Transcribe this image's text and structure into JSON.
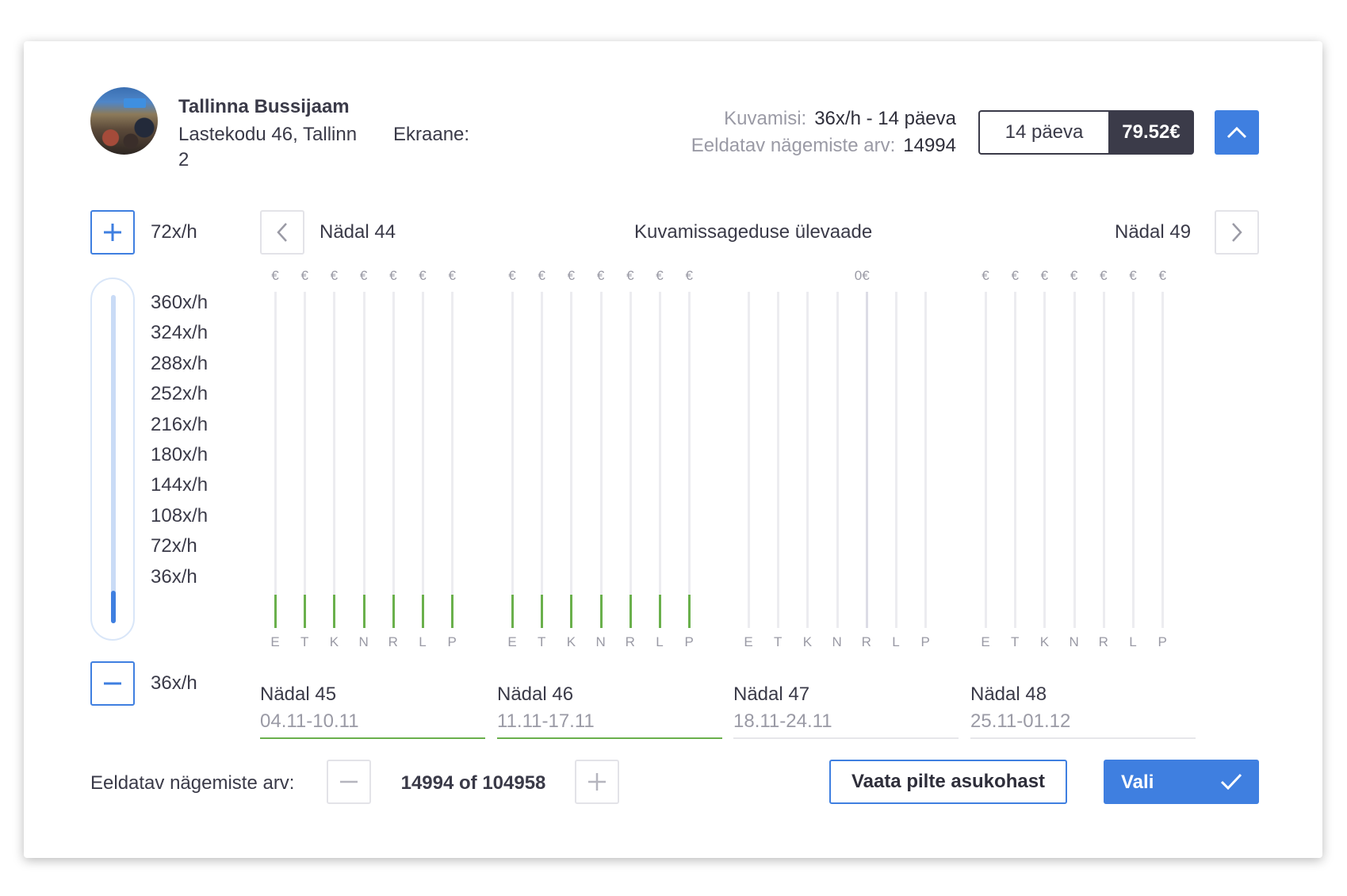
{
  "location": {
    "name": "Tallinna Bussijaam",
    "address": "Lastekodu 46, Tallinn",
    "screens_label": "Ekraane:",
    "screens_value": "2",
    "photo_icon": "location-photo"
  },
  "summary": {
    "display_label": "Kuvamisi:",
    "display_value": "36x/h - 14 päeva",
    "views_label": "Eeldatav nägemiste arv:",
    "views_value": "14994",
    "days": "14 päeva",
    "price": "79.52€"
  },
  "frequency": {
    "top_value": "72x/h",
    "bottom_value": "36x/h",
    "scale": [
      "360x/h",
      "324x/h",
      "288x/h",
      "252x/h",
      "216x/h",
      "180x/h",
      "144x/h",
      "108x/h",
      "72x/h",
      "36x/h"
    ],
    "current_level_fraction": 0.1
  },
  "chart_nav": {
    "start_week": "Nädal 44",
    "title": "Kuvamissageduse ülevaade",
    "end_week": "Nädal 49"
  },
  "chart_data": {
    "type": "bar",
    "unit": "x/h",
    "max": 360,
    "day_labels": [
      "E",
      "T",
      "K",
      "N",
      "R",
      "L",
      "P"
    ],
    "weeks": [
      {
        "name": "Nädal 45",
        "range": "04.11-10.11",
        "selected": true,
        "price_labels": [
          "€",
          "€",
          "€",
          "€",
          "€",
          "€",
          "€"
        ],
        "values": [
          36,
          36,
          36,
          36,
          36,
          36,
          36
        ]
      },
      {
        "name": "Nädal 46",
        "range": "11.11-17.11",
        "selected": true,
        "price_labels": [
          "€",
          "€",
          "€",
          "€",
          "€",
          "€",
          "€"
        ],
        "values": [
          36,
          36,
          36,
          36,
          36,
          36,
          36
        ]
      },
      {
        "name": "Nädal 47",
        "range": "18.11-24.11",
        "selected": false,
        "price_labels": [
          "",
          "",
          "",
          "",
          "",
          "",
          ""
        ],
        "week_price": "0€",
        "values": [
          0,
          0,
          0,
          0,
          0,
          0,
          0
        ]
      },
      {
        "name": "Nädal 48",
        "range": "25.11-01.12",
        "selected": false,
        "price_labels": [
          "€",
          "€",
          "€",
          "€",
          "€",
          "€",
          "€"
        ],
        "values": [
          0,
          0,
          0,
          0,
          0,
          0,
          0
        ]
      }
    ]
  },
  "footer": {
    "views_label": "Eeldatav nägemiste arv:",
    "views_value": "14994 of 104958",
    "gallery_button": "Vaata pilte asukohast",
    "select_button": "Vali"
  },
  "colors": {
    "accent": "#3f7fe0",
    "bar_fill": "#6ab04c",
    "dark": "#3b3b49",
    "muted": "#9a9aa5"
  }
}
